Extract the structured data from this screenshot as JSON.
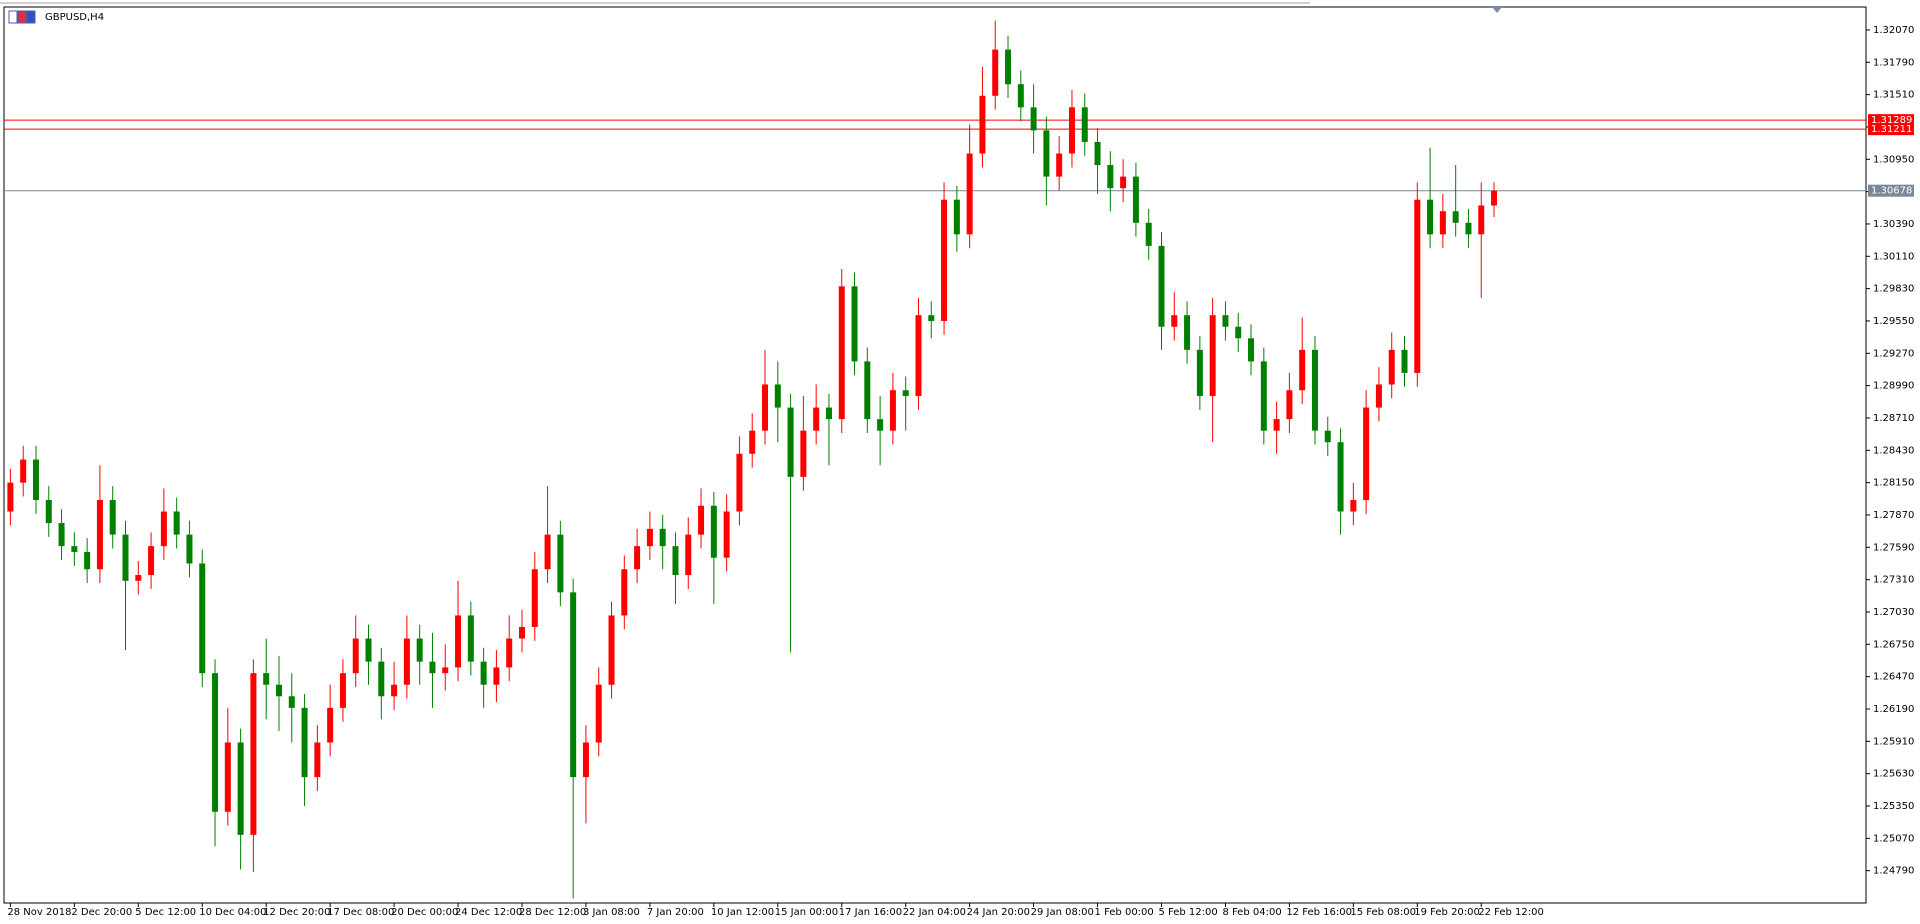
{
  "chart_data": {
    "type": "candlestick",
    "title": "GBPUSD,H4",
    "up_color": "#ff0000",
    "down_color": "#008000",
    "categories": [
      "28 Nov 2018",
      null,
      null,
      null,
      null,
      "2 Dec 20:00",
      null,
      null,
      null,
      null,
      "5 Dec 12:00",
      null,
      null,
      null,
      null,
      "10 Dec 04:00",
      null,
      null,
      null,
      null,
      "12 Dec 20:00",
      null,
      null,
      null,
      null,
      "17 Dec 08:00",
      null,
      null,
      null,
      null,
      "20 Dec 00:00",
      null,
      null,
      null,
      null,
      "24 Dec 12:00",
      null,
      null,
      null,
      null,
      "28 Dec 12:00",
      null,
      null,
      null,
      null,
      "3 Jan 08:00",
      null,
      null,
      null,
      null,
      "7 Jan 20:00",
      null,
      null,
      null,
      null,
      "10 Jan 12:00",
      null,
      null,
      null,
      null,
      "15 Jan 00:00",
      null,
      null,
      null,
      null,
      "17 Jan 16:00",
      null,
      null,
      null,
      null,
      "22 Jan 04:00",
      null,
      null,
      null,
      null,
      "24 Jan 20:00",
      null,
      null,
      null,
      null,
      "29 Jan 08:00",
      null,
      null,
      null,
      null,
      "1 Feb 00:00",
      null,
      null,
      null,
      null,
      "5 Feb 12:00",
      null,
      null,
      null,
      null,
      "8 Feb 04:00",
      null,
      null,
      null,
      null,
      "12 Feb 16:00",
      null,
      null,
      null,
      null,
      "15 Feb 08:00",
      null,
      null,
      null,
      null,
      "19 Feb 20:00",
      null,
      null,
      null,
      null,
      "22 Feb 12:00",
      null
    ],
    "open": [
      1.279,
      1.2815,
      1.2835,
      1.28,
      1.278,
      1.276,
      1.2755,
      1.274,
      1.28,
      1.277,
      1.273,
      1.2735,
      1.276,
      1.279,
      1.277,
      1.2745,
      1.265,
      1.253,
      1.259,
      1.251,
      1.265,
      1.264,
      1.263,
      1.262,
      1.256,
      1.259,
      1.262,
      1.265,
      1.268,
      1.266,
      1.263,
      1.264,
      1.268,
      1.266,
      1.265,
      1.2655,
      1.27,
      1.266,
      1.264,
      1.2655,
      1.268,
      1.269,
      1.274,
      1.277,
      1.272,
      1.256,
      1.259,
      1.264,
      1.27,
      1.274,
      1.276,
      1.2775,
      1.276,
      1.2735,
      1.277,
      1.2795,
      1.275,
      1.279,
      1.284,
      1.286,
      1.29,
      1.288,
      1.282,
      1.286,
      1.288,
      1.287,
      1.2985,
      1.292,
      1.287,
      1.286,
      1.2895,
      1.289,
      1.296,
      1.2955,
      1.306,
      1.303,
      1.31,
      1.315,
      1.319,
      1.316,
      1.314,
      1.312,
      1.308,
      1.31,
      1.314,
      1.311,
      1.309,
      1.307,
      1.308,
      1.304,
      1.302,
      1.295,
      1.296,
      1.293,
      1.289,
      1.296,
      1.295,
      1.294,
      1.292,
      1.286,
      1.287,
      1.2895,
      1.293,
      1.286,
      1.285,
      1.279,
      1.28,
      1.288,
      1.29,
      1.293,
      1.291,
      1.306,
      1.303,
      1.305,
      1.304,
      1.303,
      1.3055
    ],
    "high": [
      1.2827,
      1.2847,
      1.2847,
      1.2812,
      1.2792,
      1.2772,
      1.2767,
      1.283,
      1.2812,
      1.2782,
      1.2747,
      1.2772,
      1.281,
      1.2802,
      1.2782,
      1.2757,
      1.2662,
      1.262,
      1.2602,
      1.2662,
      1.268,
      1.2665,
      1.265,
      1.2632,
      1.2605,
      1.264,
      1.2662,
      1.27,
      1.2692,
      1.2672,
      1.266,
      1.27,
      1.2692,
      1.2685,
      1.2675,
      1.273,
      1.2712,
      1.2672,
      1.267,
      1.27,
      1.2705,
      1.2755,
      1.2812,
      1.2782,
      1.2732,
      1.2605,
      1.2655,
      1.2712,
      1.2752,
      1.2775,
      1.279,
      1.2787,
      1.2772,
      1.2785,
      1.281,
      1.2807,
      1.2805,
      1.2855,
      1.2875,
      1.293,
      1.292,
      1.2892,
      1.289,
      1.29,
      1.2892,
      1.3,
      1.2997,
      1.2932,
      1.289,
      1.291,
      1.2907,
      1.2975,
      1.2972,
      1.3075,
      1.3072,
      1.3125,
      1.3175,
      1.3215,
      1.3202,
      1.3172,
      1.316,
      1.3132,
      1.3115,
      1.3155,
      1.3152,
      1.3122,
      1.3102,
      1.3095,
      1.3092,
      1.3052,
      1.3032,
      1.298,
      1.2972,
      1.2942,
      1.2975,
      1.2972,
      1.2962,
      1.2952,
      1.2932,
      1.2885,
      1.291,
      1.2958,
      1.2942,
      1.2872,
      1.2862,
      1.2815,
      1.2895,
      1.2915,
      1.2945,
      1.2942,
      1.3075,
      1.3105,
      1.3065,
      1.309,
      1.3052,
      1.3075,
      1.3075
    ],
    "low": [
      1.2778,
      1.2803,
      1.2788,
      1.2768,
      1.2748,
      1.2743,
      1.2728,
      1.2728,
      1.2758,
      1.267,
      1.2718,
      1.2723,
      1.2748,
      1.2758,
      1.2733,
      1.2638,
      1.25,
      1.2518,
      1.248,
      1.2478,
      1.261,
      1.26,
      1.259,
      1.2535,
      1.2548,
      1.2578,
      1.2608,
      1.2638,
      1.264,
      1.261,
      1.2618,
      1.2628,
      1.264,
      1.262,
      1.2635,
      1.2643,
      1.2648,
      1.262,
      1.2625,
      1.2643,
      1.2668,
      1.2678,
      1.2728,
      1.2708,
      1.2455,
      1.252,
      1.2578,
      1.2628,
      1.2688,
      1.2728,
      1.2748,
      1.274,
      1.271,
      1.2723,
      1.2758,
      1.271,
      1.2738,
      1.2778,
      1.2828,
      1.2848,
      1.285,
      1.2668,
      1.2808,
      1.2848,
      1.283,
      1.2858,
      1.2908,
      1.2858,
      1.283,
      1.2848,
      1.286,
      1.2878,
      1.294,
      1.2943,
      1.3015,
      1.3018,
      1.3088,
      1.3138,
      1.3148,
      1.3128,
      1.31,
      1.3055,
      1.3068,
      1.3088,
      1.3098,
      1.3065,
      1.305,
      1.3058,
      1.3028,
      1.3008,
      1.293,
      1.2938,
      1.2918,
      1.2878,
      1.285,
      1.2938,
      1.2928,
      1.2908,
      1.2848,
      1.284,
      1.2858,
      1.2883,
      1.2848,
      1.2838,
      1.277,
      1.2778,
      1.2788,
      1.2868,
      1.2888,
      1.2898,
      1.2898,
      1.3018,
      1.3018,
      1.3028,
      1.3018,
      1.2975,
      1.3045
    ],
    "close": [
      1.2815,
      1.2835,
      1.28,
      1.278,
      1.276,
      1.2755,
      1.274,
      1.28,
      1.277,
      1.273,
      1.2735,
      1.276,
      1.279,
      1.277,
      1.2745,
      1.265,
      1.253,
      1.259,
      1.251,
      1.265,
      1.264,
      1.263,
      1.262,
      1.256,
      1.259,
      1.262,
      1.265,
      1.268,
      1.266,
      1.263,
      1.264,
      1.268,
      1.266,
      1.265,
      1.2655,
      1.27,
      1.266,
      1.264,
      1.2655,
      1.268,
      1.269,
      1.274,
      1.277,
      1.272,
      1.256,
      1.259,
      1.264,
      1.27,
      1.274,
      1.276,
      1.2775,
      1.276,
      1.2735,
      1.277,
      1.2795,
      1.275,
      1.279,
      1.284,
      1.286,
      1.29,
      1.288,
      1.282,
      1.286,
      1.288,
      1.287,
      1.2985,
      1.292,
      1.287,
      1.286,
      1.2895,
      1.289,
      1.296,
      1.2955,
      1.306,
      1.303,
      1.31,
      1.315,
      1.319,
      1.316,
      1.314,
      1.312,
      1.308,
      1.31,
      1.314,
      1.311,
      1.309,
      1.307,
      1.308,
      1.304,
      1.302,
      1.295,
      1.296,
      1.293,
      1.289,
      1.296,
      1.295,
      1.294,
      1.292,
      1.286,
      1.287,
      1.2895,
      1.293,
      1.286,
      1.285,
      1.279,
      1.28,
      1.288,
      1.29,
      1.293,
      1.291,
      1.306,
      1.303,
      1.305,
      1.304,
      1.303,
      1.3055,
      1.30678
    ],
    "ylim": [
      1.2451,
      1.3226
    ],
    "yticks": [
      {
        "value": 1.3207,
        "label": "1.32070"
      },
      {
        "value": 1.3179,
        "label": "1.31790"
      },
      {
        "value": 1.3151,
        "label": "1.31510"
      },
      {
        "value": 1.3123,
        "label": "1.31230"
      },
      {
        "value": 1.3095,
        "label": "1.30950"
      },
      {
        "value": 1.3067,
        "label": "1.30670"
      },
      {
        "value": 1.3039,
        "label": "1.30390"
      },
      {
        "value": 1.3011,
        "label": "1.30110"
      },
      {
        "value": 1.2983,
        "label": "1.29830"
      },
      {
        "value": 1.2955,
        "label": "1.29550"
      },
      {
        "value": 1.2927,
        "label": "1.29270"
      },
      {
        "value": 1.2899,
        "label": "1.28990"
      },
      {
        "value": 1.2871,
        "label": "1.28710"
      },
      {
        "value": 1.2843,
        "label": "1.28430"
      },
      {
        "value": 1.2815,
        "label": "1.28150"
      },
      {
        "value": 1.2787,
        "label": "1.27870"
      },
      {
        "value": 1.2759,
        "label": "1.27590"
      },
      {
        "value": 1.2731,
        "label": "1.27310"
      },
      {
        "value": 1.2703,
        "label": "1.27030"
      },
      {
        "value": 1.2675,
        "label": "1.26750"
      },
      {
        "value": 1.2647,
        "label": "1.26470"
      },
      {
        "value": 1.2619,
        "label": "1.26190"
      },
      {
        "value": 1.2591,
        "label": "1.25910"
      },
      {
        "value": 1.2563,
        "label": "1.25630"
      },
      {
        "value": 1.2535,
        "label": "1.25350"
      },
      {
        "value": 1.2507,
        "label": "1.25070"
      },
      {
        "value": 1.2479,
        "label": "1.24790"
      }
    ],
    "hlines": [
      {
        "value": 1.31289,
        "color": "#ff0000"
      },
      {
        "value": 1.31211,
        "color": "#ff0000"
      },
      {
        "value": 1.30678,
        "color": "#778899"
      }
    ],
    "grid": false
  }
}
